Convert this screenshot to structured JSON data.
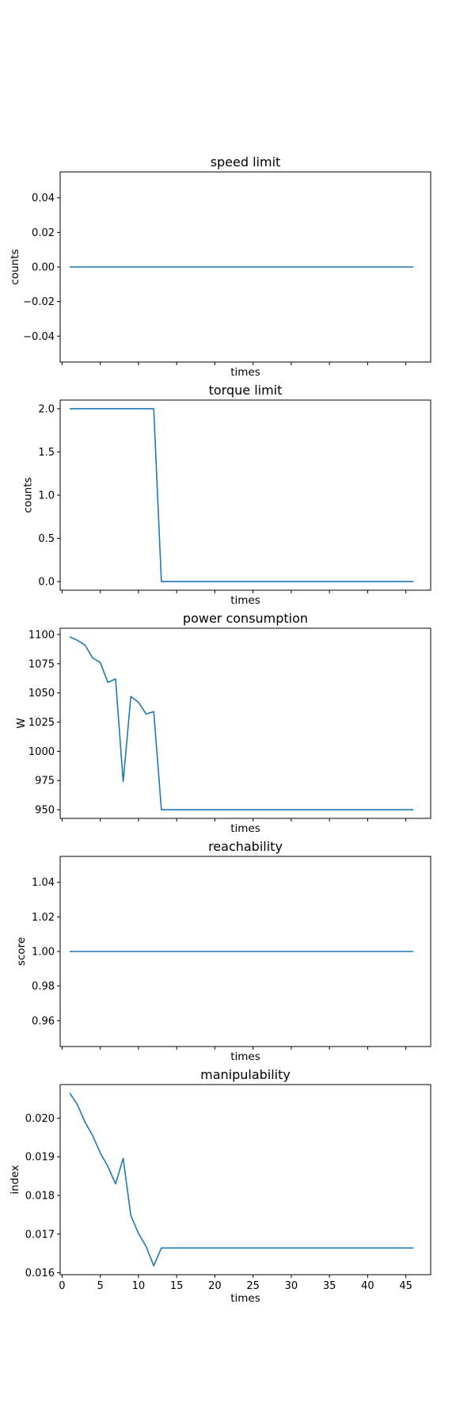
{
  "chart_data": [
    {
      "type": "line",
      "title": "speed limit",
      "xlabel": "times",
      "ylabel": "counts",
      "xlim": [
        -0.25,
        48.25
      ],
      "ylim": [
        -0.055,
        0.055
      ],
      "yticks": [
        -0.04,
        -0.02,
        0.0,
        0.02,
        0.04
      ],
      "ytick_labels": [
        "−0.04",
        "−0.02",
        "0.00",
        "0.02",
        "0.04"
      ],
      "xticks": [
        0,
        5,
        10,
        15,
        20,
        25,
        30,
        35,
        40,
        45
      ],
      "xtick_labels": [],
      "x": [
        1,
        2,
        3,
        4,
        5,
        6,
        7,
        8,
        9,
        10,
        11,
        12,
        13,
        14,
        15,
        16,
        17,
        18,
        19,
        20,
        21,
        22,
        23,
        24,
        25,
        26,
        27,
        28,
        29,
        30,
        31,
        32,
        33,
        34,
        35,
        36,
        37,
        38,
        39,
        40,
        41,
        42,
        43,
        44,
        45,
        46
      ],
      "y": [
        0,
        0,
        0,
        0,
        0,
        0,
        0,
        0,
        0,
        0,
        0,
        0,
        0,
        0,
        0,
        0,
        0,
        0,
        0,
        0,
        0,
        0,
        0,
        0,
        0,
        0,
        0,
        0,
        0,
        0,
        0,
        0,
        0,
        0,
        0,
        0,
        0,
        0,
        0,
        0,
        0,
        0,
        0,
        0,
        0,
        0
      ]
    },
    {
      "type": "line",
      "title": "torque limit",
      "xlabel": "times",
      "ylabel": "counts",
      "xlim": [
        -0.25,
        48.25
      ],
      "ylim": [
        -0.1,
        2.1
      ],
      "yticks": [
        0.0,
        0.5,
        1.0,
        1.5,
        2.0
      ],
      "ytick_labels": [
        "0.0",
        "0.5",
        "1.0",
        "1.5",
        "2.0"
      ],
      "xticks": [
        0,
        5,
        10,
        15,
        20,
        25,
        30,
        35,
        40,
        45
      ],
      "xtick_labels": [],
      "x": [
        1,
        2,
        3,
        4,
        5,
        6,
        7,
        8,
        9,
        10,
        11,
        12,
        13,
        14,
        15,
        16,
        17,
        18,
        19,
        20,
        21,
        22,
        23,
        24,
        25,
        26,
        27,
        28,
        29,
        30,
        31,
        32,
        33,
        34,
        35,
        36,
        37,
        38,
        39,
        40,
        41,
        42,
        43,
        44,
        45,
        46
      ],
      "y": [
        2,
        2,
        2,
        2,
        2,
        2,
        2,
        2,
        2,
        2,
        2,
        2,
        0,
        0,
        0,
        0,
        0,
        0,
        0,
        0,
        0,
        0,
        0,
        0,
        0,
        0,
        0,
        0,
        0,
        0,
        0,
        0,
        0,
        0,
        0,
        0,
        0,
        0,
        0,
        0,
        0,
        0,
        0,
        0,
        0,
        0
      ]
    },
    {
      "type": "line",
      "title": "power consumption",
      "xlabel": "times",
      "ylabel": "W",
      "xlim": [
        -0.25,
        48.25
      ],
      "ylim": [
        942.6,
        1105.4
      ],
      "yticks": [
        950,
        975,
        1000,
        1025,
        1050,
        1075,
        1100
      ],
      "ytick_labels": [
        "950",
        "975",
        "1000",
        "1025",
        "1050",
        "1075",
        "1100"
      ],
      "xticks": [
        0,
        5,
        10,
        15,
        20,
        25,
        30,
        35,
        40,
        45
      ],
      "xtick_labels": [],
      "x": [
        1,
        2,
        3,
        4,
        5,
        6,
        7,
        8,
        9,
        10,
        11,
        12,
        13,
        14,
        15,
        16,
        17,
        18,
        19,
        20,
        21,
        22,
        23,
        24,
        25,
        26,
        27,
        28,
        29,
        30,
        31,
        32,
        33,
        34,
        35,
        36,
        37,
        38,
        39,
        40,
        41,
        42,
        43,
        44,
        45,
        46
      ],
      "y": [
        1098,
        1095,
        1091,
        1080,
        1076,
        1059,
        1062,
        974,
        1047,
        1042,
        1032,
        1034,
        950,
        950,
        950,
        950,
        950,
        950,
        950,
        950,
        950,
        950,
        950,
        950,
        950,
        950,
        950,
        950,
        950,
        950,
        950,
        950,
        950,
        950,
        950,
        950,
        950,
        950,
        950,
        950,
        950,
        950,
        950,
        950,
        950,
        950
      ]
    },
    {
      "type": "line",
      "title": "reachability",
      "xlabel": "times",
      "ylabel": "score",
      "xlim": [
        -0.25,
        48.25
      ],
      "ylim": [
        0.945,
        1.055
      ],
      "yticks": [
        0.96,
        0.98,
        1.0,
        1.02,
        1.04
      ],
      "ytick_labels": [
        "0.96",
        "0.98",
        "1.00",
        "1.02",
        "1.04"
      ],
      "xticks": [
        0,
        5,
        10,
        15,
        20,
        25,
        30,
        35,
        40,
        45
      ],
      "xtick_labels": [],
      "x": [
        1,
        2,
        3,
        4,
        5,
        6,
        7,
        8,
        9,
        10,
        11,
        12,
        13,
        14,
        15,
        16,
        17,
        18,
        19,
        20,
        21,
        22,
        23,
        24,
        25,
        26,
        27,
        28,
        29,
        30,
        31,
        32,
        33,
        34,
        35,
        36,
        37,
        38,
        39,
        40,
        41,
        42,
        43,
        44,
        45,
        46
      ],
      "y": [
        1,
        1,
        1,
        1,
        1,
        1,
        1,
        1,
        1,
        1,
        1,
        1,
        1,
        1,
        1,
        1,
        1,
        1,
        1,
        1,
        1,
        1,
        1,
        1,
        1,
        1,
        1,
        1,
        1,
        1,
        1,
        1,
        1,
        1,
        1,
        1,
        1,
        1,
        1,
        1,
        1,
        1,
        1,
        1,
        1,
        1
      ]
    },
    {
      "type": "line",
      "title": "manipulability",
      "xlabel": "times",
      "ylabel": "index",
      "xlim": [
        -0.25,
        48.25
      ],
      "ylim": [
        0.01595,
        0.02087
      ],
      "yticks": [
        0.016,
        0.017,
        0.018,
        0.019,
        0.02
      ],
      "ytick_labels": [
        "0.016",
        "0.017",
        "0.018",
        "0.019",
        "0.020"
      ],
      "xticks": [
        0,
        5,
        10,
        15,
        20,
        25,
        30,
        35,
        40,
        45
      ],
      "xtick_labels": [
        "0",
        "5",
        "10",
        "15",
        "20",
        "25",
        "30",
        "35",
        "40",
        "45"
      ],
      "x": [
        1,
        2,
        3,
        4,
        5,
        6,
        7,
        8,
        9,
        10,
        11,
        12,
        13,
        14,
        15,
        16,
        17,
        18,
        19,
        20,
        21,
        22,
        23,
        24,
        25,
        26,
        27,
        28,
        29,
        30,
        31,
        32,
        33,
        34,
        35,
        36,
        37,
        38,
        39,
        40,
        41,
        42,
        43,
        44,
        45,
        46
      ],
      "y": [
        0.02065,
        0.02035,
        0.0199,
        0.01955,
        0.0191,
        0.01875,
        0.0183,
        0.01896,
        0.01748,
        0.01702,
        0.01668,
        0.01618,
        0.01664,
        0.01664,
        0.01664,
        0.01664,
        0.01664,
        0.01664,
        0.01664,
        0.01664,
        0.01664,
        0.01664,
        0.01664,
        0.01664,
        0.01664,
        0.01664,
        0.01664,
        0.01664,
        0.01664,
        0.01664,
        0.01664,
        0.01664,
        0.01664,
        0.01664,
        0.01664,
        0.01664,
        0.01664,
        0.01664,
        0.01664,
        0.01664,
        0.01664,
        0.01664,
        0.01664,
        0.01664,
        0.01664,
        0.01664
      ]
    }
  ]
}
